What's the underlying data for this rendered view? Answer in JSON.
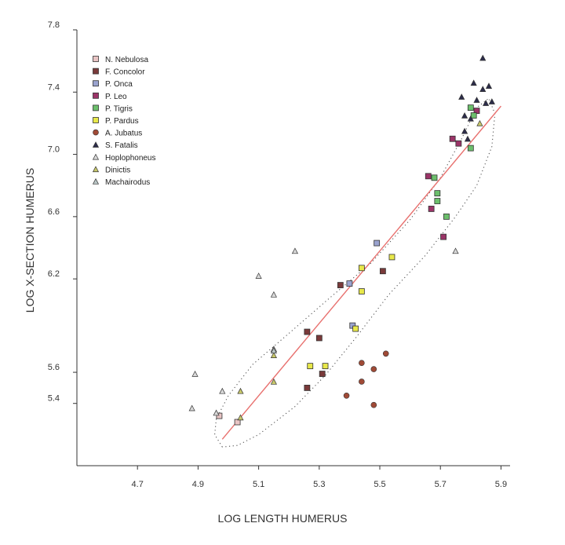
{
  "chart_data": {
    "type": "scatter",
    "title": "",
    "xlabel": "LOG LENGTH HUMERUS",
    "ylabel": "LOG X-SECTION HUMERUS",
    "xlim": [
      4.5,
      5.93
    ],
    "ylim": [
      5.0,
      7.8
    ],
    "xticks": [
      {
        "value": 4.7,
        "label": "4.7"
      },
      {
        "value": 4.9,
        "label": "4.9"
      },
      {
        "value": 5.1,
        "label": "5.1"
      },
      {
        "value": 5.3,
        "label": "5.3"
      },
      {
        "value": 5.5,
        "label": "5.5"
      },
      {
        "value": 5.7,
        "label": "5.7"
      },
      {
        "value": 5.9,
        "label": "5.9"
      }
    ],
    "yticks": [
      {
        "value": 5.4,
        "label": "5.4"
      },
      {
        "value": 5.6,
        "label": "5.6"
      },
      {
        "value": 6.2,
        "label": "6.2"
      },
      {
        "value": 6.6,
        "label": "6.6"
      },
      {
        "value": 7.0,
        "label": "7.0"
      },
      {
        "value": 7.4,
        "label": "7.4"
      },
      {
        "value": 7.8,
        "label": "7.8"
      }
    ],
    "grid": false,
    "legend_position": "top-left",
    "regression_line": {
      "x": [
        4.98,
        5.9
      ],
      "y": [
        5.17,
        7.31
      ],
      "color": "#e8706e"
    },
    "series": [
      {
        "name": "N. Nebulosa",
        "marker": "square",
        "color": "#e8c4c4",
        "x": [
          4.97,
          5.03
        ],
        "y": [
          5.32,
          5.28
        ]
      },
      {
        "name": "F. Concolor",
        "marker": "square",
        "color": "#7a3a3a",
        "x": [
          5.26,
          5.26,
          5.3,
          5.31,
          5.37,
          5.51
        ],
        "y": [
          5.5,
          5.86,
          5.82,
          5.59,
          6.16,
          6.25
        ]
      },
      {
        "name": "P. Onca",
        "marker": "square",
        "color": "#9aa3cf",
        "x": [
          5.4,
          5.41,
          5.49
        ],
        "y": [
          6.17,
          5.9,
          6.43
        ]
      },
      {
        "name": "P. Leo",
        "marker": "square",
        "color": "#9b3468",
        "x": [
          5.66,
          5.67,
          5.71,
          5.74,
          5.76,
          5.82
        ],
        "y": [
          6.86,
          6.65,
          6.47,
          7.1,
          7.07,
          7.28
        ]
      },
      {
        "name": "P. Tigris",
        "marker": "square",
        "color": "#6cbf6c",
        "x": [
          5.68,
          5.69,
          5.69,
          5.72,
          5.8,
          5.8,
          5.81
        ],
        "y": [
          6.85,
          6.75,
          6.7,
          6.6,
          7.04,
          7.3,
          7.25
        ]
      },
      {
        "name": "P. Pardus",
        "marker": "square",
        "color": "#e8e84a",
        "x": [
          5.27,
          5.32,
          5.42,
          5.44,
          5.44,
          5.54
        ],
        "y": [
          5.64,
          5.64,
          5.88,
          6.27,
          6.12,
          6.34
        ]
      },
      {
        "name": "A. Jubatus",
        "marker": "circle",
        "color": "#a04a36",
        "x": [
          5.39,
          5.44,
          5.44,
          5.48,
          5.48,
          5.52
        ],
        "y": [
          5.45,
          5.54,
          5.66,
          5.62,
          5.39,
          5.72
        ]
      },
      {
        "name": "S. Fatalis",
        "marker": "triangle",
        "color": "#2c2c4a",
        "x": [
          5.77,
          5.78,
          5.78,
          5.79,
          5.8,
          5.81,
          5.82,
          5.84,
          5.85,
          5.86,
          5.84,
          5.87
        ],
        "y": [
          7.37,
          7.25,
          7.15,
          7.1,
          7.23,
          7.46,
          7.35,
          7.42,
          7.33,
          7.44,
          7.62,
          7.34
        ]
      },
      {
        "name": "Hoplophoneus",
        "marker": "triangle",
        "color": "#d9d9d9",
        "x": [
          4.88,
          4.89,
          4.96,
          4.98,
          5.1,
          5.15,
          5.15,
          5.22,
          5.75
        ],
        "y": [
          5.37,
          5.59,
          5.34,
          5.48,
          6.22,
          5.75,
          6.1,
          6.38,
          6.38
        ]
      },
      {
        "name": "Dinictis",
        "marker": "triangle",
        "color": "#c8c86a",
        "x": [
          5.04,
          5.04,
          5.15,
          5.15,
          5.83
        ],
        "y": [
          5.31,
          5.48,
          5.71,
          5.54,
          7.2
        ]
      },
      {
        "name": "Machairodus",
        "marker": "triangle",
        "color": "#b9c6c6",
        "x": [
          5.15
        ],
        "y": [
          5.74
        ]
      }
    ]
  }
}
